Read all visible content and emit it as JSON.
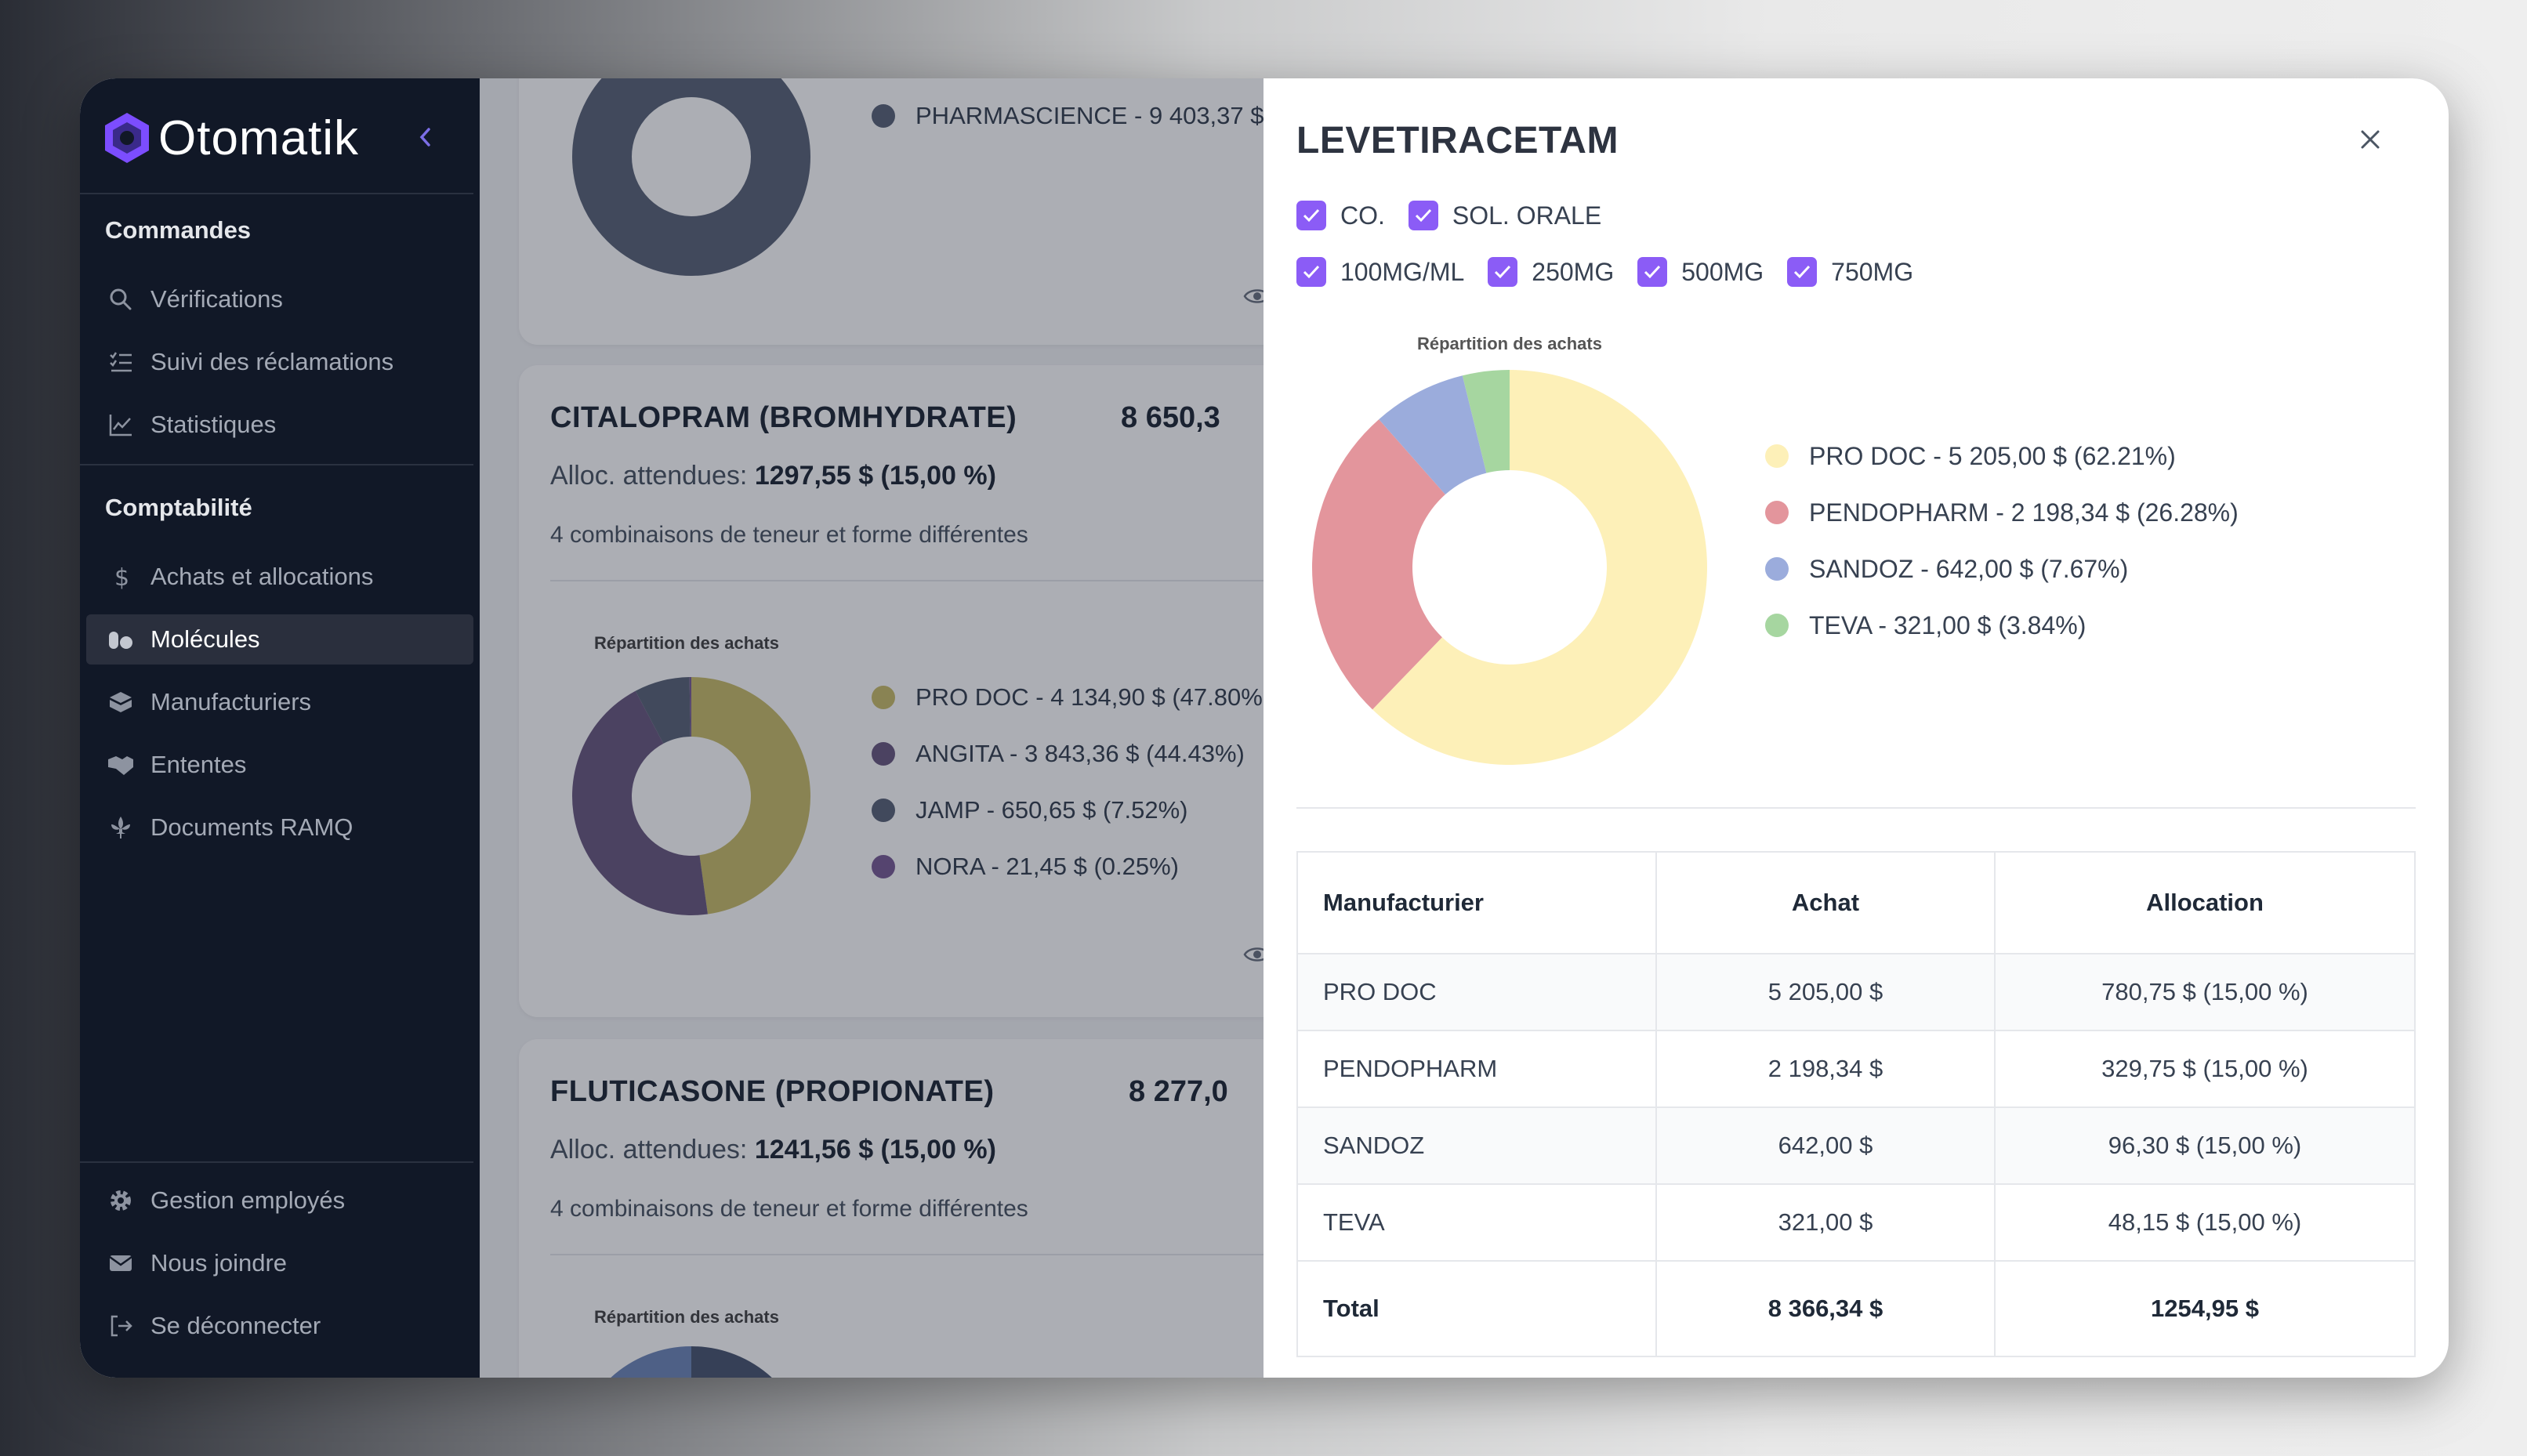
{
  "app": {
    "name": "Otomatik"
  },
  "sidebar": {
    "sections": [
      {
        "title": "Commandes",
        "items": [
          {
            "label": "Vérifications",
            "icon": "search-icon"
          },
          {
            "label": "Suivi des réclamations",
            "icon": "list-check-icon"
          },
          {
            "label": "Statistiques",
            "icon": "chart-line-icon"
          }
        ]
      },
      {
        "title": "Comptabilité",
        "items": [
          {
            "label": "Achats et allocations",
            "icon": "dollar-icon"
          },
          {
            "label": "Molécules",
            "icon": "pills-icon",
            "active": true
          },
          {
            "label": "Manufacturiers",
            "icon": "box-icon"
          },
          {
            "label": "Ententes",
            "icon": "handshake-icon"
          },
          {
            "label": "Documents RAMQ",
            "icon": "fleur-de-lis-icon"
          }
        ]
      }
    ],
    "footer": [
      {
        "label": "Gestion employés",
        "icon": "gear-icon"
      },
      {
        "label": "Nous joindre",
        "icon": "envelope-icon"
      },
      {
        "label": "Se déconnecter",
        "icon": "logout-icon"
      }
    ]
  },
  "cards": [
    {
      "legend": [
        {
          "label": "PHARMASCIENCE - 9 403,37 $",
          "color": "#5b6478"
        }
      ]
    },
    {
      "title": "CITALOPRAM (BROMHYDRATE)",
      "total": "8 650,3",
      "alloc_prefix": "Alloc. attendues:",
      "alloc_value": "1297,55 $ (15,00 %)",
      "combinations": "4 combinaisons de teneur et forme différentes",
      "chart_title": "Répartition des achats",
      "legend": [
        {
          "label": "PRO DOC - 4 134,90 $ (47.80%",
          "color": "#c9bd6a"
        },
        {
          "label": "ANGITA - 3 843,36 $ (44.43%)",
          "color": "#6b5a80"
        },
        {
          "label": "JAMP - 650,65 $ (7.52%)",
          "color": "#5b6478"
        },
        {
          "label": "NORA - 21,45 $ (0.25%)",
          "color": "#7a5d95"
        }
      ]
    },
    {
      "title": "FLUTICASONE (PROPIONATE)",
      "total": "8 277,0",
      "alloc_prefix": "Alloc. attendues:",
      "alloc_value": "1241,56 $ (15,00 %)",
      "combinations": "4 combinaisons de teneur et forme différentes",
      "chart_title": "Répartition des achats"
    }
  ],
  "panel": {
    "title": "LEVETIRACETAM",
    "forms": [
      "CO.",
      "SOL. ORALE"
    ],
    "strengths": [
      "100MG/ML",
      "250MG",
      "500MG",
      "750MG"
    ],
    "chart_title": "Répartition des achats",
    "legend": [
      {
        "label": "PRO DOC - 5 205,00 $ (62.21%)",
        "color": "#fdf0b8"
      },
      {
        "label": "PENDOPHARM - 2 198,34 $ (26.28%)",
        "color": "#e3959c"
      },
      {
        "label": "SANDOZ - 642,00 $ (7.67%)",
        "color": "#9bacdc"
      },
      {
        "label": "TEVA - 321,00 $ (3.84%)",
        "color": "#a6d6a0"
      }
    ],
    "table": {
      "headers": [
        "Manufacturier",
        "Achat",
        "Allocation"
      ],
      "rows": [
        [
          "PRO DOC",
          "5 205,00 $",
          "780,75 $ (15,00 %)"
        ],
        [
          "PENDOPHARM",
          "2 198,34 $",
          "329,75 $ (15,00 %)"
        ],
        [
          "SANDOZ",
          "642,00 $",
          "96,30 $ (15,00 %)"
        ],
        [
          "TEVA",
          "321,00 $",
          "48,15 $ (15,00 %)"
        ]
      ],
      "total": [
        "Total",
        "8 366,34 $",
        "1254,95 $"
      ]
    }
  },
  "chart_data": [
    {
      "type": "pie",
      "title": "Répartition des achats",
      "categories": [
        "PRO DOC",
        "PENDOPHARM",
        "SANDOZ",
        "TEVA"
      ],
      "values": [
        5205.0,
        2198.34,
        642.0,
        321.0
      ],
      "percentages": [
        62.21,
        26.28,
        7.67,
        3.84
      ],
      "colors": [
        "#fdf0b8",
        "#e3959c",
        "#9bacdc",
        "#a6d6a0"
      ]
    },
    {
      "type": "pie",
      "title": "Répartition des achats",
      "categories": [
        "PRO DOC",
        "ANGITA",
        "JAMP",
        "NORA"
      ],
      "values": [
        4134.9,
        3843.36,
        650.65,
        21.45
      ],
      "percentages": [
        47.8,
        44.43,
        7.52,
        0.25
      ],
      "colors": [
        "#c9bd6a",
        "#6b5a80",
        "#5b6478",
        "#7a5d95"
      ]
    }
  ]
}
